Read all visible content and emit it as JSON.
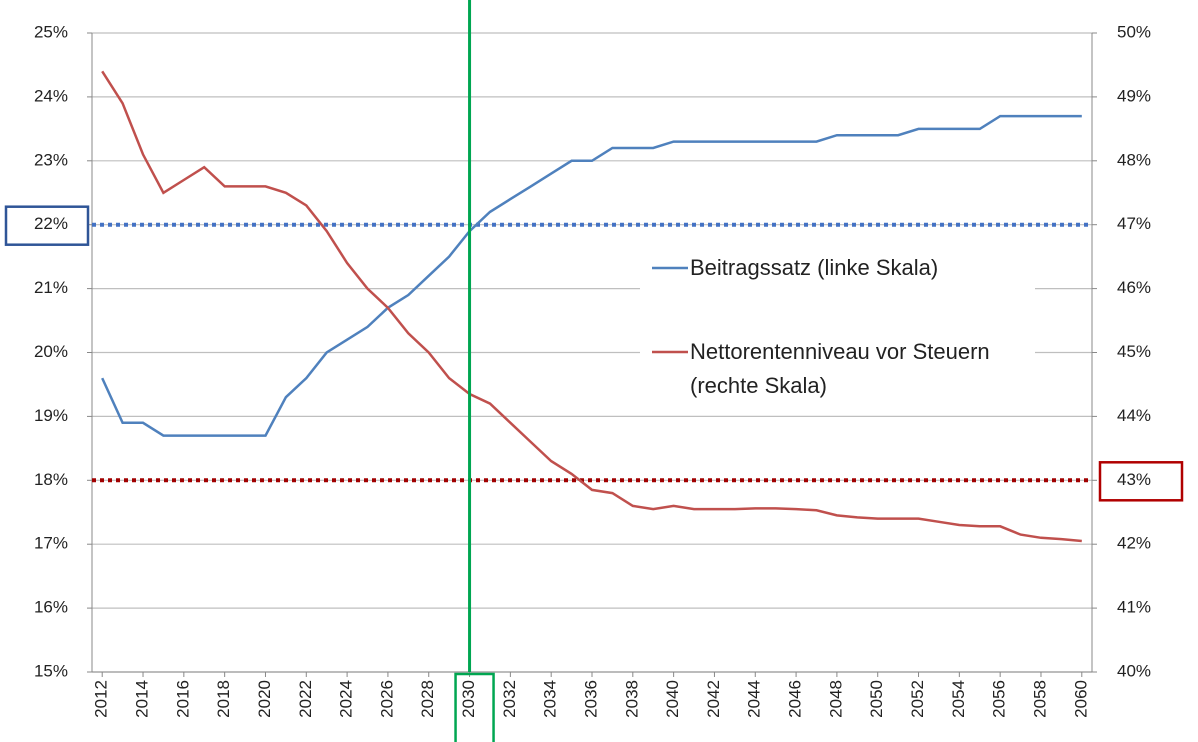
{
  "chart_data": {
    "type": "line",
    "x": [
      2012,
      2013,
      2014,
      2015,
      2016,
      2017,
      2018,
      2019,
      2020,
      2021,
      2022,
      2023,
      2024,
      2025,
      2026,
      2027,
      2028,
      2029,
      2030,
      2031,
      2032,
      2033,
      2034,
      2035,
      2036,
      2037,
      2038,
      2039,
      2040,
      2041,
      2042,
      2043,
      2044,
      2045,
      2046,
      2047,
      2048,
      2049,
      2050,
      2051,
      2052,
      2053,
      2054,
      2055,
      2056,
      2057,
      2058,
      2059,
      2060
    ],
    "series": [
      {
        "name": "Beitragssatz (linke Skala)",
        "color": "#4f81bd",
        "axis": "y",
        "values": [
          19.6,
          18.9,
          18.9,
          18.7,
          18.7,
          18.7,
          18.7,
          18.7,
          18.7,
          19.3,
          19.6,
          20.0,
          20.2,
          20.4,
          20.7,
          20.9,
          21.2,
          21.5,
          21.9,
          22.2,
          22.4,
          22.6,
          22.8,
          23.0,
          23.0,
          23.2,
          23.2,
          23.2,
          23.3,
          23.3,
          23.3,
          23.3,
          23.3,
          23.3,
          23.3,
          23.3,
          23.4,
          23.4,
          23.4,
          23.4,
          23.5,
          23.5,
          23.5,
          23.5,
          23.7,
          23.7,
          23.7,
          23.7,
          23.7
        ]
      },
      {
        "name": "Nettorentenniveau vor Steuern (rechte Skala)",
        "color": "#c0504d",
        "axis": "y2",
        "values": [
          49.4,
          48.9,
          48.1,
          47.5,
          47.7,
          47.9,
          47.6,
          47.6,
          47.6,
          47.5,
          47.3,
          46.9,
          46.4,
          46.0,
          45.7,
          45.3,
          45.0,
          44.6,
          44.35,
          44.2,
          43.9,
          43.6,
          43.3,
          43.1,
          42.85,
          42.8,
          42.6,
          42.55,
          42.6,
          42.55,
          42.55,
          42.55,
          42.56,
          42.56,
          42.55,
          42.53,
          42.45,
          42.42,
          42.4,
          42.4,
          42.4,
          42.35,
          42.3,
          42.28,
          42.28,
          42.15,
          42.1,
          42.08,
          42.05
        ]
      }
    ],
    "xlim": [
      2011.5,
      2060.5
    ],
    "xticks": [
      2012,
      2014,
      2016,
      2018,
      2020,
      2022,
      2024,
      2026,
      2028,
      2030,
      2032,
      2034,
      2036,
      2038,
      2040,
      2042,
      2044,
      2046,
      2048,
      2050,
      2052,
      2054,
      2056,
      2058,
      2060
    ],
    "ylim": [
      15,
      25
    ],
    "yticks": [
      {
        "value": 15,
        "label": "15%"
      },
      {
        "value": 16,
        "label": "16%"
      },
      {
        "value": 17,
        "label": "17%"
      },
      {
        "value": 18,
        "label": "18%"
      },
      {
        "value": 19,
        "label": "19%"
      },
      {
        "value": 20,
        "label": "20%"
      },
      {
        "value": 21,
        "label": "21%"
      },
      {
        "value": 22,
        "label": "22%"
      },
      {
        "value": 23,
        "label": "23%"
      },
      {
        "value": 24,
        "label": "24%"
      },
      {
        "value": 25,
        "label": "25%"
      }
    ],
    "y2lim": [
      40,
      50
    ],
    "y2ticks": [
      {
        "value": 40,
        "label": "40%"
      },
      {
        "value": 41,
        "label": "41%"
      },
      {
        "value": 42,
        "label": "42%"
      },
      {
        "value": 43,
        "label": "43%"
      },
      {
        "value": 44,
        "label": "44%"
      },
      {
        "value": 45,
        "label": "45%"
      },
      {
        "value": 46,
        "label": "46%"
      },
      {
        "value": 47,
        "label": "47%"
      },
      {
        "value": 48,
        "label": "48%"
      },
      {
        "value": 49,
        "label": "49%"
      },
      {
        "value": 50,
        "label": "50%"
      }
    ],
    "grid": true,
    "reference_lines": [
      {
        "axis": "y",
        "value": 22,
        "color": "#4472c4",
        "box_color": "#2f5597"
      },
      {
        "axis": "y2",
        "value": 43,
        "color": "#a00000",
        "box_color": "#b00000"
      }
    ],
    "vline": {
      "x": 2030,
      "color": "#00a651"
    }
  }
}
